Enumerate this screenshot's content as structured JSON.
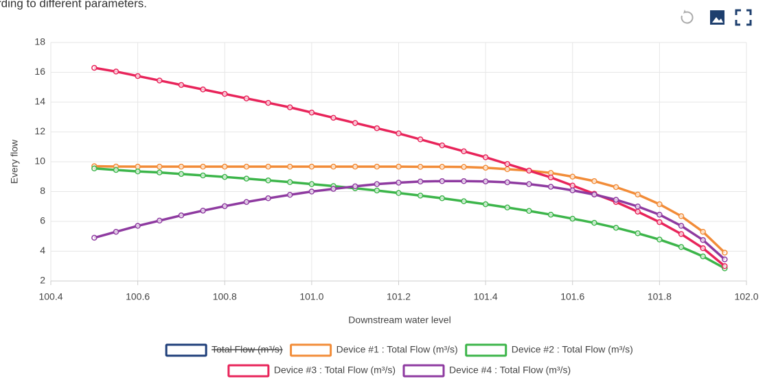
{
  "page_text": "rding to different parameters.",
  "chart_data": {
    "type": "line",
    "xlabel": "Downstream water level",
    "ylabel": "Every flow",
    "x": [
      100.5,
      100.55,
      100.6,
      100.65,
      100.7,
      100.75,
      100.8,
      100.85,
      100.9,
      100.95,
      101.0,
      101.05,
      101.1,
      101.15,
      101.2,
      101.25,
      101.3,
      101.35,
      101.4,
      101.45,
      101.5,
      101.55,
      101.6,
      101.65,
      101.7,
      101.75,
      101.8,
      101.85,
      101.9,
      101.95
    ],
    "xlim": [
      100.4,
      102.0
    ],
    "xticks": [
      100.4,
      100.6,
      100.8,
      {
        "value": 101.0,
        "label": "101.0"
      },
      101.2,
      101.4,
      101.6,
      101.8,
      {
        "value": 102.0,
        "label": "102.0"
      }
    ],
    "ylim": [
      2,
      18
    ],
    "yticks": [
      2,
      4,
      6,
      8,
      10,
      12,
      14,
      16,
      18
    ],
    "grid": true,
    "series": [
      {
        "name": "Total Flow (m³/s)",
        "color": "#1f3f7a",
        "hidden": true
      },
      {
        "name": "Device #1 : Total Flow (m³/s)",
        "color": "#f28c38",
        "values": [
          9.7,
          9.68,
          9.67,
          9.67,
          9.67,
          9.67,
          9.67,
          9.67,
          9.67,
          9.67,
          9.67,
          9.67,
          9.67,
          9.67,
          9.67,
          9.66,
          9.66,
          9.65,
          9.6,
          9.5,
          9.4,
          9.25,
          9.0,
          8.7,
          8.3,
          7.8,
          7.15,
          6.35,
          5.3,
          3.9
        ]
      },
      {
        "name": "Device #2 : Total Flow (m³/s)",
        "color": "#3cb54a",
        "values": [
          9.55,
          9.45,
          9.35,
          9.28,
          9.18,
          9.08,
          8.98,
          8.87,
          8.75,
          8.63,
          8.5,
          8.37,
          8.22,
          8.07,
          7.9,
          7.73,
          7.55,
          7.35,
          7.15,
          6.93,
          6.7,
          6.45,
          6.18,
          5.9,
          5.57,
          5.2,
          4.78,
          4.28,
          3.65,
          2.85
        ]
      },
      {
        "name": "Device #3 : Total Flow (m³/s)",
        "color": "#e8245a",
        "values": [
          16.3,
          16.05,
          15.75,
          15.45,
          15.15,
          14.85,
          14.55,
          14.25,
          13.95,
          13.65,
          13.3,
          12.95,
          12.6,
          12.25,
          11.9,
          11.5,
          11.1,
          10.7,
          10.3,
          9.85,
          9.4,
          8.95,
          8.4,
          7.85,
          7.3,
          6.65,
          5.95,
          5.15,
          4.2,
          3.0
        ]
      },
      {
        "name": "Device #4 : Total Flow (m³/s)",
        "color": "#8e3aa0",
        "values": [
          4.9,
          5.3,
          5.7,
          6.05,
          6.4,
          6.72,
          7.02,
          7.3,
          7.55,
          7.78,
          8.0,
          8.18,
          8.35,
          8.5,
          8.6,
          8.67,
          8.7,
          8.7,
          8.68,
          8.62,
          8.5,
          8.32,
          8.08,
          7.8,
          7.45,
          7.0,
          6.45,
          5.7,
          4.75,
          3.45
        ]
      }
    ]
  }
}
